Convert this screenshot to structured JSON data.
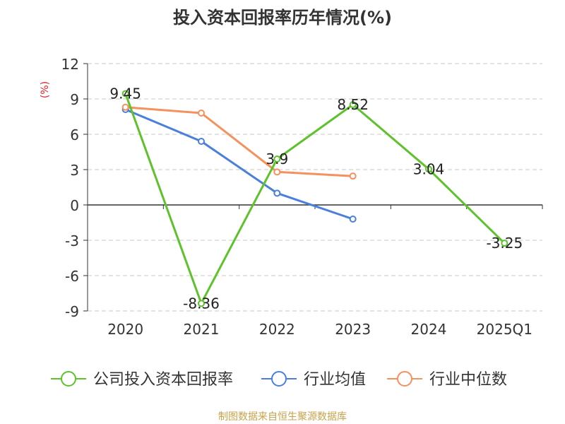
{
  "chart_data": {
    "type": "line",
    "title": "投入资本回报率历年情况(%)",
    "ylabel": "(%)",
    "xlabel": "",
    "categories": [
      "2020",
      "2021",
      "2022",
      "2023",
      "2024",
      "2025Q1"
    ],
    "ylim": [
      -9,
      12
    ],
    "yticks": [
      12,
      9,
      6,
      3,
      0,
      -3,
      -6,
      -9
    ],
    "grid": true,
    "legend_position": "bottom",
    "series": [
      {
        "name": "公司投入资本回报率",
        "color": "#5dc22b",
        "values": [
          9.45,
          -8.36,
          3.9,
          8.52,
          3.04,
          -3.25
        ],
        "labels": [
          "9.45",
          "-8.36",
          "3.9",
          "8.52",
          "3.04",
          "-3.25"
        ],
        "show_labels": true
      },
      {
        "name": "行业均值",
        "color": "#4a7fdc",
        "values": [
          8.1,
          5.4,
          1.0,
          -1.2,
          null,
          null
        ],
        "show_labels": false
      },
      {
        "name": "行业中位数",
        "color": "#f5915d",
        "values": [
          8.3,
          7.8,
          2.8,
          2.45,
          null,
          null
        ],
        "show_labels": false
      }
    ],
    "source": "制图数据来自恒生聚源数据库"
  }
}
